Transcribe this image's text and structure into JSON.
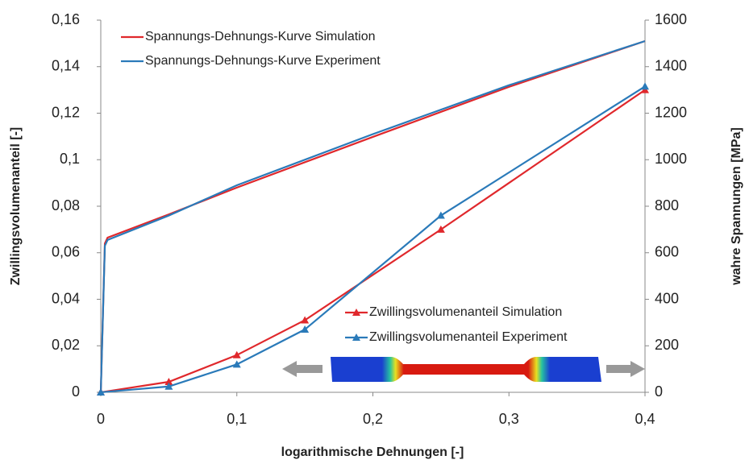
{
  "chart_data": {
    "type": "line",
    "x_label": "logarithmische Dehnungen [-]",
    "y_label": "Zwillingsvolumenanteil [-]",
    "y2_label": "wahre Spannungen [MPa]",
    "xlim": [
      0,
      0.4
    ],
    "xticks": [
      0,
      {
        "value": 0.1,
        "label": "0,1"
      },
      {
        "value": 0.2,
        "label": "0,2"
      },
      {
        "value": 0.3,
        "label": "0,3"
      },
      {
        "value": 0.4,
        "label": "0,4"
      }
    ],
    "ylim": [
      0,
      0.16
    ],
    "yticks": [
      0,
      {
        "value": 0.02,
        "label": "0,02"
      },
      {
        "value": 0.04,
        "label": "0,04"
      },
      {
        "value": 0.06,
        "label": "0,06"
      },
      {
        "value": 0.08,
        "label": "0,08"
      },
      {
        "value": 0.1,
        "label": "0,1"
      },
      {
        "value": 0.12,
        "label": "0,12"
      },
      {
        "value": 0.14,
        "label": "0,14"
      },
      {
        "value": 0.16,
        "label": "0,16"
      }
    ],
    "y2lim": [
      0,
      1600
    ],
    "y2ticks": [
      0,
      200,
      400,
      600,
      800,
      1000,
      1200,
      1400,
      1600
    ],
    "series": [
      {
        "name": "Spannungs-Dehnungs-Kurve Simulation",
        "color": "#e0282c",
        "axis": "y2",
        "x": [
          0,
          0.003,
          0.005,
          0.05,
          0.1,
          0.2,
          0.3,
          0.4
        ],
        "values": [
          0,
          640,
          665,
          765,
          880,
          1098,
          1313,
          1510
        ]
      },
      {
        "name": "Spannungs-Dehnungs-Kurve Experiment",
        "color": "#2a7ab9",
        "axis": "y2",
        "x": [
          0,
          0.003,
          0.005,
          0.05,
          0.1,
          0.2,
          0.3,
          0.4
        ],
        "values": [
          0,
          630,
          655,
          760,
          890,
          1110,
          1320,
          1510
        ]
      },
      {
        "name": "Zwillingsvolumenanteil Simulation",
        "color": "#e0282c",
        "marker": "triangle",
        "x": [
          0,
          0.05,
          0.1,
          0.15,
          0.25,
          0.4
        ],
        "values": [
          0,
          0.0045,
          0.016,
          0.031,
          0.07,
          0.13
        ]
      },
      {
        "name": "Zwillingsvolumenanteil Experiment",
        "color": "#2a7ab9",
        "marker": "triangle",
        "x": [
          0,
          0.05,
          0.1,
          0.15,
          0.25,
          0.4
        ],
        "values": [
          0,
          0.0025,
          0.012,
          0.027,
          0.076,
          0.1315
        ]
      }
    ]
  }
}
